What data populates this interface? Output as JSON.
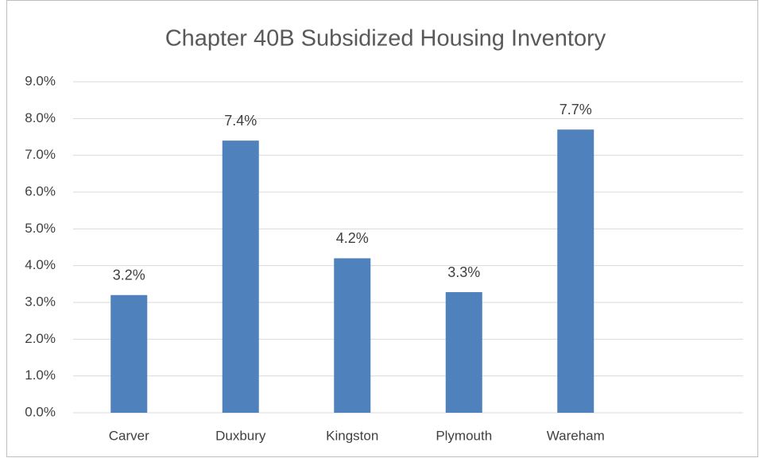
{
  "chart_data": {
    "type": "bar",
    "title": "Chapter 40B Subsidized Housing Inventory",
    "categories": [
      "Carver",
      "Duxbury",
      "Kingston",
      "Plymouth",
      "Wareham",
      null
    ],
    "values": [
      3.2,
      7.4,
      4.2,
      3.28,
      7.7,
      null
    ],
    "value_labels": [
      "3.2%",
      "7.4%",
      "4.2%",
      "3.3%",
      "7.7%",
      null
    ],
    "color": "#4f81bd",
    "ylim": [
      0,
      9
    ],
    "yticks": [
      {
        "value": 0,
        "label": "0.0%"
      },
      {
        "value": 1,
        "label": "1.0%"
      },
      {
        "value": 2,
        "label": "2.0%"
      },
      {
        "value": 3,
        "label": "3.0%"
      },
      {
        "value": 4,
        "label": "4.0%"
      },
      {
        "value": 5,
        "label": "5.0%"
      },
      {
        "value": 6,
        "label": "6.0%"
      },
      {
        "value": 7,
        "label": "7.0%"
      },
      {
        "value": 8,
        "label": "8.0%"
      },
      {
        "value": 9,
        "label": "9.0%"
      }
    ],
    "grid": true
  }
}
